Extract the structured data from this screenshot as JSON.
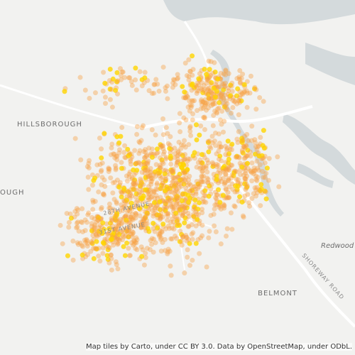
{
  "map": {
    "place_labels": [
      "HILLSBOROUGH",
      "OUGH",
      "BELMONT",
      "Redwood S"
    ],
    "street_labels": [
      "28TH AVENUE",
      "31ST AVENUE",
      "SHOREWAY ROAD"
    ],
    "attribution": "Map tiles by Carto, under CC BY 3.0. Data by OpenStreetMap, under ODbL."
  }
}
